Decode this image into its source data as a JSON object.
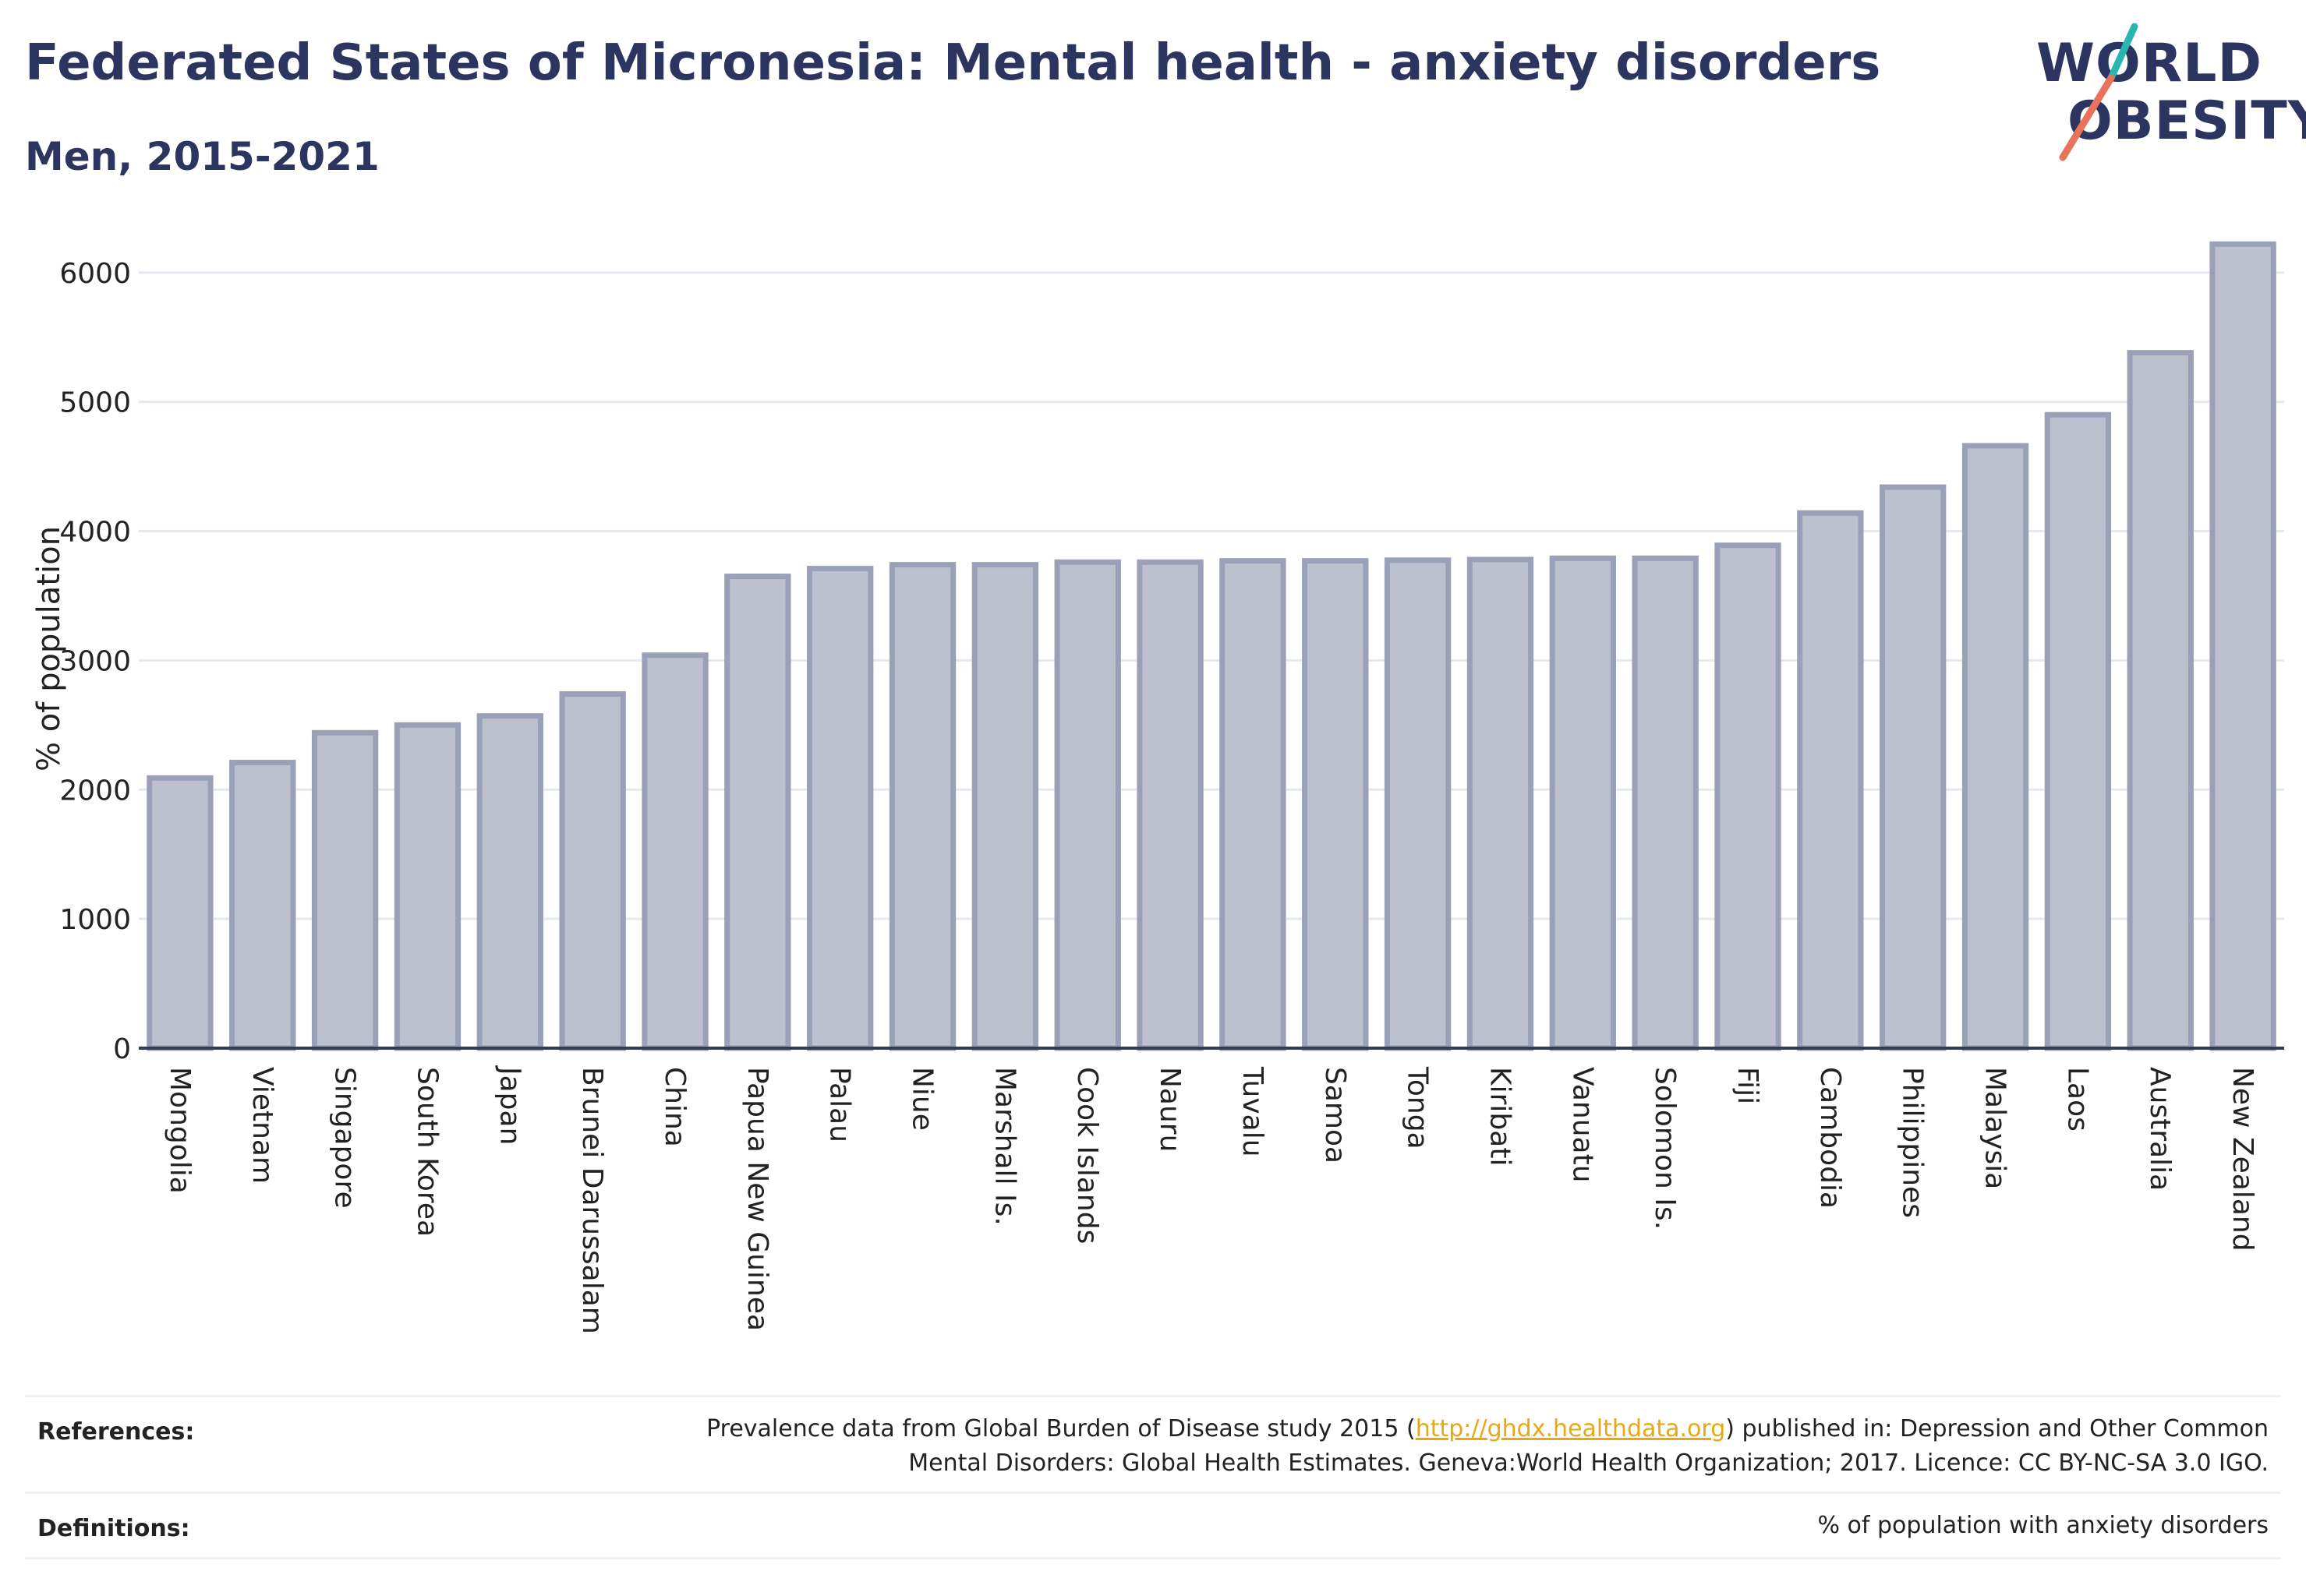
{
  "header": {
    "title": "Federated States of Micronesia: Mental health - anxiety disorders",
    "subtitle": "Men, 2015-2021"
  },
  "logo": {
    "line1": "WORLD",
    "line2": "OBESITY",
    "accent_teal": "#2bb5b0",
    "accent_coral": "#e8735a"
  },
  "chart_data": {
    "type": "bar",
    "ylabel": "% of population",
    "xlabel": "",
    "ylim": [
      0,
      6300
    ],
    "yticks": [
      0,
      1000,
      2000,
      3000,
      4000,
      5000,
      6000
    ],
    "grid": true,
    "bar_color": "#bdc1cf",
    "bar_edge_color": "#9aa0b8",
    "categories": [
      "Mongolia",
      "Vietnam",
      "Singapore",
      "South Korea",
      "Japan",
      "Brunei Darussalam",
      "China",
      "Papua New Guinea",
      "Palau",
      "Niue",
      "Marshall Is.",
      "Cook Islands",
      "Nauru",
      "Tuvalu",
      "Samoa",
      "Tonga",
      "Kiribati",
      "Vanuatu",
      "Solomon Is.",
      "Fiji",
      "Cambodia",
      "Philippines",
      "Malaysia",
      "Laos",
      "Australia",
      "New Zealand"
    ],
    "values": [
      2090,
      2210,
      2440,
      2500,
      2570,
      2740,
      3040,
      3650,
      3710,
      3740,
      3740,
      3760,
      3760,
      3770,
      3770,
      3775,
      3780,
      3790,
      3790,
      3890,
      4140,
      4340,
      4660,
      4900,
      5380,
      6220
    ]
  },
  "references": {
    "label": "References:",
    "text_before_link": "Prevalence data from Global Burden of Disease study 2015 (",
    "link": "http://ghdx.healthdata.org",
    "text_after_link": ") published in: Depression and Other Common",
    "line2": "Mental Disorders: Global Health Estimates. Geneva:World Health Organization; 2017. Licence: CC BY-NC-SA 3.0 IGO."
  },
  "definitions": {
    "label": "Definitions:",
    "text": "% of population with anxiety disorders"
  }
}
